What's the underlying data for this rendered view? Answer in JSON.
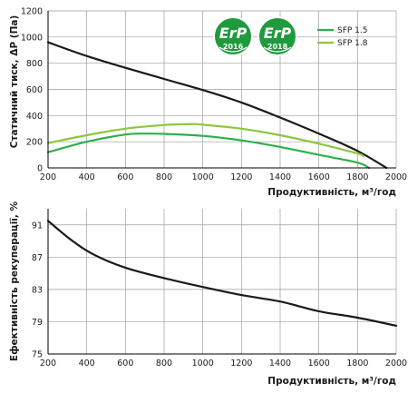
{
  "colors": {
    "grid": "#9e9e9e",
    "axis": "#000000",
    "pressure_curve": "#1a1a1a",
    "sfp_15": "#2db04b",
    "sfp_18": "#8dc63f",
    "efficiency_curve": "#1a1a1a",
    "badge_2016": "#1f9a3d",
    "badge_2018": "#1f9a3d",
    "badge_ring": "#ffffff"
  },
  "badges": [
    {
      "icon": "erp-2016-badge-icon",
      "word": "ErP",
      "year": "2016"
    },
    {
      "icon": "erp-2018-badge-icon",
      "word": "ErP",
      "year": "2018"
    }
  ],
  "chart_data": [
    {
      "type": "line",
      "xlabel": "Продуктивність, м³/год",
      "ylabel": "Статичний тиск, ΔP (Па)",
      "xlim": [
        200,
        2000
      ],
      "ylim": [
        0,
        1200
      ],
      "x_ticks": [
        "200",
        "400",
        "600",
        "800",
        "1000",
        "1200",
        "1400",
        "1600",
        "1800",
        "2000"
      ],
      "y_ticks": [
        "0",
        "200",
        "400",
        "600",
        "800",
        "1000",
        "1200"
      ],
      "grid": true,
      "legend_position": "top-right",
      "series": [
        {
          "role": "pressure",
          "points": [
            [
              200,
              960
            ],
            [
              400,
              855
            ],
            [
              600,
              765
            ],
            [
              800,
              680
            ],
            [
              1000,
              595
            ],
            [
              1200,
              500
            ],
            [
              1400,
              385
            ],
            [
              1600,
              262
            ],
            [
              1800,
              130
            ],
            [
              1950,
              0
            ]
          ]
        },
        {
          "name": "SFP 1.5",
          "points": [
            [
              200,
              120
            ],
            [
              400,
              200
            ],
            [
              600,
              255
            ],
            [
              700,
              262
            ],
            [
              800,
              260
            ],
            [
              1000,
              245
            ],
            [
              1200,
              210
            ],
            [
              1400,
              160
            ],
            [
              1600,
              100
            ],
            [
              1800,
              40
            ],
            [
              1860,
              0
            ]
          ]
        },
        {
          "name": "SFP 1.8",
          "points": [
            [
              200,
              190
            ],
            [
              400,
              250
            ],
            [
              600,
              300
            ],
            [
              800,
              328
            ],
            [
              950,
              335
            ],
            [
              1000,
              330
            ],
            [
              1200,
              300
            ],
            [
              1400,
              250
            ],
            [
              1600,
              185
            ],
            [
              1800,
              110
            ],
            [
              1830,
              90
            ]
          ]
        }
      ]
    },
    {
      "type": "line",
      "xlabel": "Продуктивність, м³/год",
      "ylabel": "Ефективність рекуперації, %",
      "xlim": [
        200,
        2000
      ],
      "ylim": [
        75,
        93
      ],
      "x_ticks": [
        "200",
        "400",
        "600",
        "800",
        "1000",
        "1200",
        "1400",
        "1600",
        "1800",
        "2000"
      ],
      "y_ticks": [
        "75",
        "79",
        "83",
        "87",
        "91"
      ],
      "grid": true,
      "series": [
        {
          "role": "efficiency",
          "points": [
            [
              200,
              91.5
            ],
            [
              300,
              89.5
            ],
            [
              400,
              87.8
            ],
            [
              500,
              86.6
            ],
            [
              600,
              85.7
            ],
            [
              700,
              85.0
            ],
            [
              800,
              84.4
            ],
            [
              1000,
              83.3
            ],
            [
              1200,
              82.3
            ],
            [
              1400,
              81.5
            ],
            [
              1600,
              80.3
            ],
            [
              1800,
              79.5
            ],
            [
              2000,
              78.5
            ]
          ]
        }
      ]
    }
  ]
}
